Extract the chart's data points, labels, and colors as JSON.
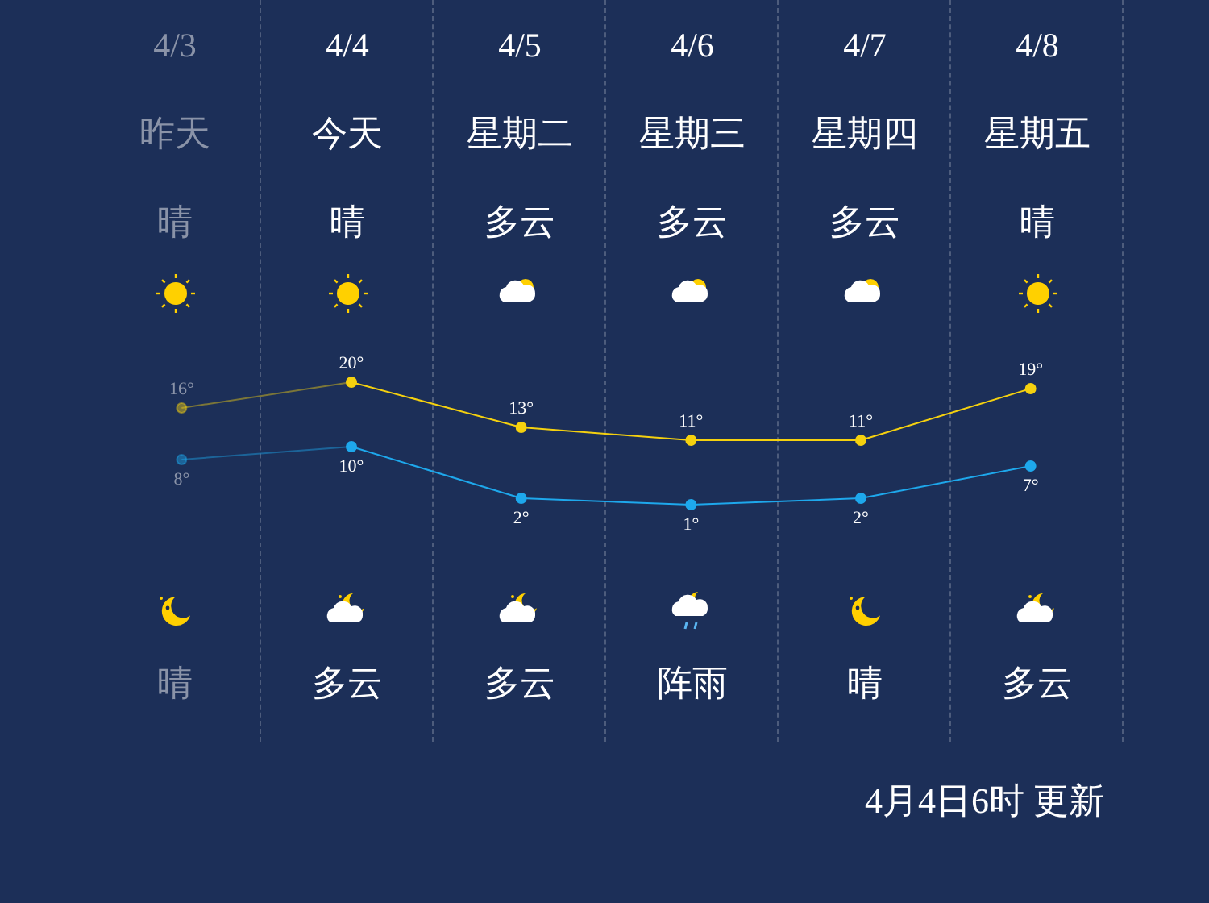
{
  "chart_data": {
    "type": "line",
    "categories": [
      "4/3",
      "4/4",
      "4/5",
      "4/6",
      "4/7",
      "4/8"
    ],
    "series": [
      {
        "color": "#f5d10f",
        "values": [
          16,
          20,
          13,
          11,
          11,
          19
        ],
        "value_labels": [
          "16°",
          "20°",
          "13°",
          "11°",
          "11°",
          "19°"
        ]
      },
      {
        "color": "#1ea8ec",
        "values": [
          8,
          10,
          2,
          1,
          2,
          7
        ],
        "value_labels": [
          "8°",
          "10°",
          "2°",
          "1°",
          "2°",
          "7°"
        ]
      }
    ],
    "tick_labels": "x",
    "legend": false,
    "marker": "circle",
    "line_style": "solid",
    "annotations": [
      "昨天",
      "今天",
      "星期二",
      "星期三",
      "星期四",
      "星期五",
      "晴",
      "晴",
      "多云",
      "多云",
      "多云",
      "晴",
      "晴",
      "多云",
      "多云",
      "阵雨",
      "晴",
      "多云",
      "4月4日6时 更新"
    ]
  }
}
